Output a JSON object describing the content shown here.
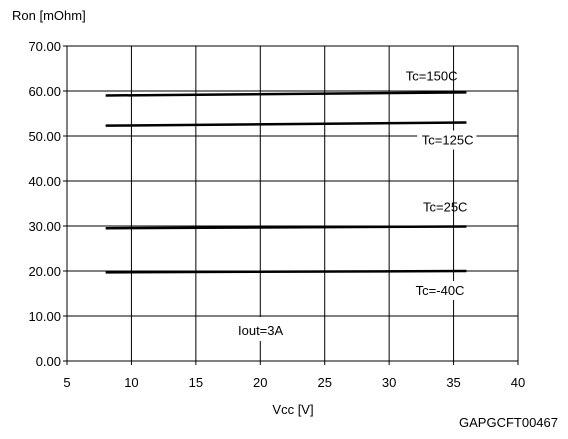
{
  "chart_data": {
    "type": "line",
    "title": "",
    "ylabel": "Ron [mOhm]",
    "xlabel": "Vcc [V]",
    "xlim": [
      5,
      40
    ],
    "ylim": [
      0,
      70
    ],
    "x_ticks": [
      "5",
      "10",
      "15",
      "20",
      "25",
      "30",
      "35",
      "40"
    ],
    "y_ticks": [
      "0.00",
      "10.00",
      "20.00",
      "30.00",
      "40.00",
      "50.00",
      "60.00",
      "70.00"
    ],
    "grid": true,
    "legend": "none",
    "series": [
      {
        "name": "Tc=150C",
        "x": [
          8,
          36
        ],
        "y": [
          59.0,
          59.7
        ]
      },
      {
        "name": "Tc=125C",
        "x": [
          8,
          36
        ],
        "y": [
          52.3,
          53.0
        ]
      },
      {
        "name": "Tc=25C",
        "x": [
          8,
          36
        ],
        "y": [
          29.5,
          29.9
        ]
      },
      {
        "name": "Tc=-40C",
        "x": [
          8,
          36
        ],
        "y": [
          19.7,
          20.0
        ]
      }
    ],
    "annotation": "Iout=3A",
    "figure_code": "GAPGCFT00467"
  }
}
